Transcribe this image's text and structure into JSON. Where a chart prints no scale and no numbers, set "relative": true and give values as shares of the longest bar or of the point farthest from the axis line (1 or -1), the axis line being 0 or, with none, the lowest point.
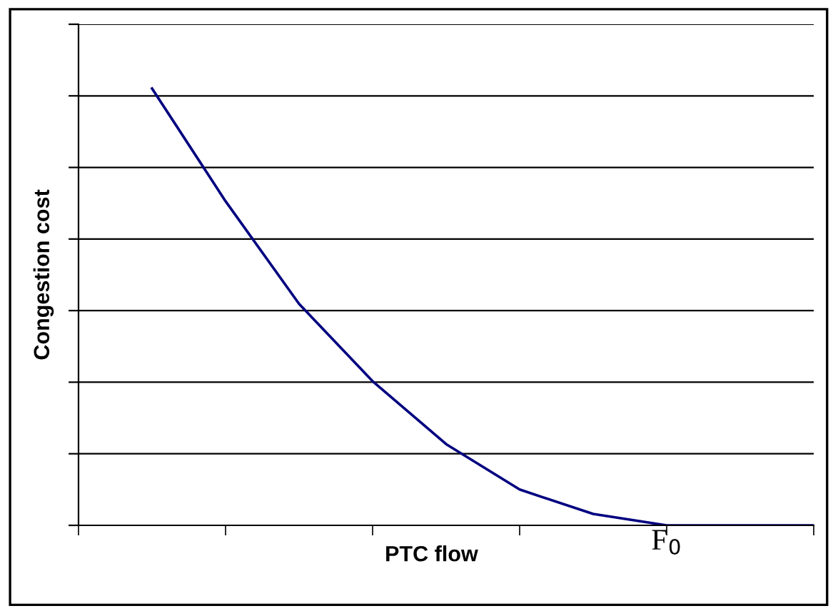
{
  "chart_data": {
    "type": "line",
    "relative": true,
    "xlabel": "PTC flow",
    "ylabel": "Congestion cost",
    "categories": [
      null,
      null,
      null,
      null,
      null,
      null,
      null,
      null,
      null,
      null
    ],
    "annotations": [
      "F$_{0}$"
    ],
    "series": [
      {
        "color": "#000080",
        "values": [
          1,
          0.742,
          0.507,
          0.33,
          0.186,
          0.082,
          0.026,
          0,
          0,
          0
        ]
      }
    ],
    "grid": "y",
    "marker": "none",
    "line_style": "solid",
    "legend": false
  }
}
